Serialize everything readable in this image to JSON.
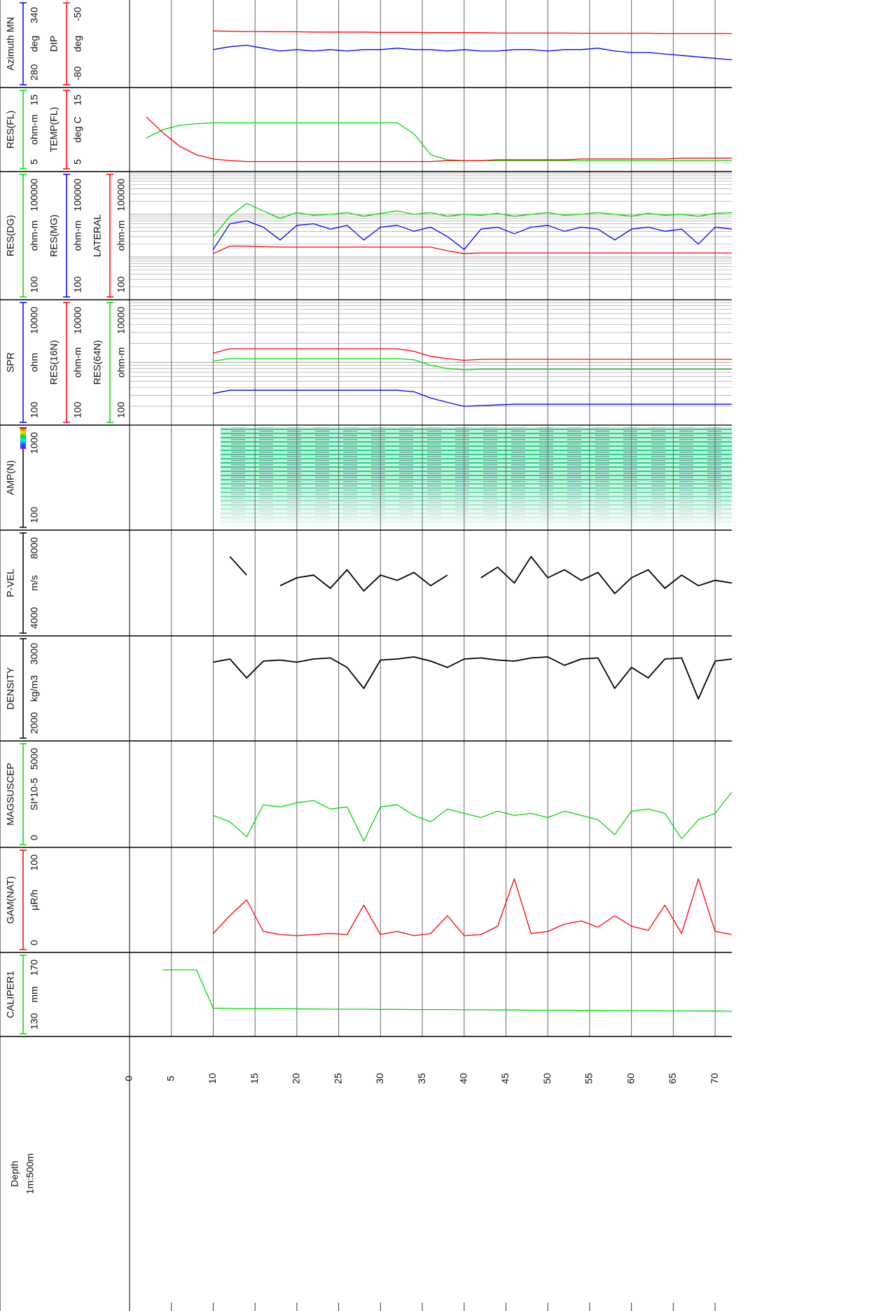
{
  "depth_axis": {
    "title": "Depth",
    "scale": "1m:500m",
    "xlim": [
      0,
      72
    ],
    "xticks": [
      0,
      5,
      10,
      15,
      20,
      25,
      30,
      35,
      40,
      45,
      50,
      55,
      60,
      65,
      70
    ]
  },
  "x": [
    2,
    4,
    6,
    8,
    10,
    12,
    14,
    16,
    18,
    20,
    22,
    24,
    26,
    28,
    30,
    32,
    34,
    36,
    38,
    40,
    42,
    44,
    46,
    48,
    50,
    52,
    54,
    56,
    58,
    60,
    62,
    64,
    66,
    68,
    70,
    72
  ],
  "chart_data": [
    {
      "type": "line",
      "series": [
        {
          "name": "Azimuth MN",
          "unit": "deg",
          "lim": [
            280,
            340
          ],
          "color": "#0000ff",
          "values": [
            null,
            null,
            null,
            null,
            306,
            308,
            309,
            307,
            305,
            306,
            305,
            306,
            305,
            306,
            306,
            307,
            306,
            306,
            305,
            306,
            305,
            305,
            306,
            306,
            305,
            306,
            306,
            307,
            305,
            304,
            304,
            303,
            302,
            301,
            300,
            299
          ]
        },
        {
          "name": "DIP",
          "unit": "deg",
          "lim": [
            -80,
            -50
          ],
          "color": "#ff0000",
          "values": [
            null,
            null,
            null,
            null,
            -60.6,
            -60.7,
            -60.8,
            -60.8,
            -60.9,
            -60.9,
            -61,
            -61,
            -61,
            -61,
            -61.1,
            -61.1,
            -61.1,
            -61.2,
            -61.2,
            -61.2,
            -61.2,
            -61.3,
            -61.3,
            -61.3,
            -61.3,
            -61.3,
            -61.4,
            -61.4,
            -61.4,
            -61.4,
            -61.4,
            -61.5,
            -61.5,
            -61.5,
            -61.5,
            -61.5
          ]
        }
      ]
    },
    {
      "type": "line",
      "series": [
        {
          "name": "RES(FL)",
          "unit": "ohm-m",
          "lim": [
            5,
            15
          ],
          "color": "#00dd00",
          "values": [
            9,
            10,
            10.5,
            10.7,
            10.8,
            10.8,
            10.8,
            10.8,
            10.8,
            10.8,
            10.8,
            10.8,
            10.8,
            10.8,
            10.8,
            10.8,
            9.5,
            7,
            6.4,
            6.3,
            6.3,
            6.3,
            6.3,
            6.3,
            6.3,
            6.3,
            6.3,
            6.3,
            6.3,
            6.3,
            6.3,
            6.3,
            6.3,
            6.3,
            6.3,
            6.3
          ]
        },
        {
          "name": "TEMP(FL)",
          "unit": "deg C",
          "lim": [
            5,
            15
          ],
          "color": "#ff0000",
          "values": [
            11.5,
            9.6,
            8,
            7,
            6.5,
            6.3,
            6.2,
            6.2,
            6.2,
            6.2,
            6.2,
            6.2,
            6.2,
            6.2,
            6.2,
            6.2,
            6.2,
            6.2,
            6.3,
            6.3,
            6.3,
            6.4,
            6.4,
            6.4,
            6.4,
            6.4,
            6.5,
            6.5,
            6.5,
            6.5,
            6.5,
            6.5,
            6.6,
            6.6,
            6.6,
            6.6
          ]
        }
      ]
    },
    {
      "type": "line",
      "log": true,
      "series": [
        {
          "name": "RES(DG)",
          "unit": "ohm-m",
          "lim": [
            100,
            100000
          ],
          "color": "#00dd00",
          "values": [
            null,
            null,
            null,
            null,
            3000,
            9000,
            18000,
            12000,
            8000,
            11000,
            9500,
            10000,
            11000,
            9000,
            10500,
            12000,
            10000,
            11000,
            9000,
            10000,
            9500,
            10500,
            9000,
            10000,
            11000,
            9500,
            10000,
            11000,
            10000,
            9000,
            10500,
            9500,
            10000,
            9000,
            10500,
            11000
          ]
        },
        {
          "name": "RES(MG)",
          "unit": "ohm-m",
          "lim": [
            100,
            100000
          ],
          "color": "#0000ff",
          "values": [
            null,
            null,
            null,
            null,
            1500,
            6000,
            7000,
            5000,
            2500,
            5500,
            6000,
            4500,
            5500,
            2500,
            5000,
            5500,
            4000,
            5000,
            3000,
            1500,
            4500,
            5000,
            3500,
            5000,
            5500,
            4000,
            5000,
            4500,
            2500,
            4500,
            5000,
            4000,
            4500,
            2000,
            5000,
            4500
          ]
        },
        {
          "name": "LATERAL",
          "unit": "ohm-m",
          "lim": [
            100,
            100000
          ],
          "color": "#ff0000",
          "values": [
            null,
            null,
            null,
            null,
            1200,
            1800,
            1800,
            1750,
            1700,
            1700,
            1700,
            1700,
            1700,
            1700,
            1700,
            1700,
            1700,
            1700,
            1400,
            1200,
            1250,
            1250,
            1250,
            1250,
            1250,
            1250,
            1250,
            1250,
            1250,
            1250,
            1250,
            1250,
            1250,
            1250,
            1250,
            1250
          ]
        }
      ]
    },
    {
      "type": "line",
      "log": true,
      "series": [
        {
          "name": "SPR",
          "unit": "ohm",
          "lim": [
            100,
            10000
          ],
          "color": "#0000ff",
          "values": [
            null,
            null,
            null,
            null,
            320,
            360,
            360,
            360,
            360,
            360,
            360,
            360,
            360,
            360,
            360,
            360,
            340,
            270,
            230,
            200,
            205,
            210,
            215,
            215,
            215,
            215,
            215,
            215,
            215,
            215,
            215,
            215,
            215,
            215,
            215,
            215
          ]
        },
        {
          "name": "RES(16N)",
          "unit": "ohm-m",
          "lim": [
            100,
            10000
          ],
          "color": "#ff0000",
          "values": [
            null,
            null,
            null,
            null,
            1400,
            1650,
            1650,
            1650,
            1650,
            1650,
            1650,
            1650,
            1650,
            1650,
            1650,
            1650,
            1500,
            1250,
            1150,
            1080,
            1120,
            1120,
            1120,
            1120,
            1120,
            1120,
            1120,
            1120,
            1120,
            1120,
            1120,
            1120,
            1120,
            1120,
            1120,
            1120
          ]
        },
        {
          "name": "RES(64N)",
          "unit": "ohm-m",
          "lim": [
            100,
            10000
          ],
          "color": "#00dd00",
          "values": [
            null,
            null,
            null,
            null,
            1050,
            1150,
            1150,
            1150,
            1150,
            1150,
            1150,
            1150,
            1150,
            1150,
            1150,
            1150,
            1100,
            900,
            800,
            760,
            780,
            780,
            780,
            780,
            780,
            780,
            780,
            780,
            780,
            780,
            780,
            780,
            780,
            780,
            780,
            780
          ]
        }
      ]
    },
    {
      "type": "image",
      "series": [
        {
          "name": "AMP(N)",
          "lim": [
            100,
            1000
          ]
        }
      ]
    },
    {
      "type": "line",
      "series": [
        {
          "name": "P-VEL",
          "unit": "m/s",
          "lim": [
            4000,
            8000
          ],
          "color": "#000000",
          "values": [
            null,
            null,
            null,
            null,
            null,
            7000,
            6300,
            null,
            5900,
            6200,
            6300,
            5800,
            6500,
            5700,
            6300,
            6100,
            6400,
            5900,
            6300,
            null,
            6200,
            6600,
            6000,
            7000,
            6200,
            6500,
            6100,
            6400,
            5600,
            6200,
            6500,
            5800,
            6300,
            5900,
            6100,
            6000
          ]
        }
      ]
    },
    {
      "type": "line",
      "series": [
        {
          "name": "DENSITY",
          "unit": "kg/m3",
          "lim": [
            2000,
            3000
          ],
          "color": "#000000",
          "values": [
            null,
            null,
            null,
            null,
            2750,
            2780,
            2600,
            2760,
            2770,
            2750,
            2780,
            2790,
            2700,
            2500,
            2770,
            2780,
            2800,
            2760,
            2700,
            2780,
            2790,
            2770,
            2760,
            2790,
            2800,
            2720,
            2780,
            2790,
            2500,
            2700,
            2600,
            2780,
            2790,
            2400,
            2760,
            2780
          ]
        }
      ]
    },
    {
      "type": "line",
      "series": [
        {
          "name": "MAGSUSCEP",
          "unit": "SI*10-5",
          "lim": [
            0,
            5000
          ],
          "color": "#00dd00",
          "values": [
            null,
            null,
            null,
            null,
            1500,
            1200,
            500,
            2000,
            1900,
            2100,
            2200,
            1800,
            1900,
            300,
            1900,
            2000,
            1500,
            1200,
            1800,
            1600,
            1400,
            1700,
            1500,
            1600,
            1400,
            1700,
            1500,
            1300,
            600,
            1700,
            1800,
            1600,
            400,
            1300,
            1600,
            2600
          ]
        }
      ]
    },
    {
      "type": "line",
      "series": [
        {
          "name": "GAM(NAT)",
          "unit": "µR/h",
          "lim": [
            0,
            100
          ],
          "color": "#ff0000",
          "values": [
            null,
            null,
            null,
            null,
            18,
            35,
            50,
            20,
            17,
            16,
            17,
            18,
            17,
            45,
            17,
            20,
            16,
            18,
            35,
            16,
            17,
            25,
            70,
            18,
            20,
            27,
            30,
            24,
            35,
            25,
            21,
            45,
            18,
            70,
            20,
            17
          ]
        }
      ]
    },
    {
      "type": "line",
      "series": [
        {
          "name": "CALIPER1",
          "unit": "mm",
          "lim": [
            130,
            170
          ],
          "color": "#00dd00",
          "values": [
            null,
            161.7,
            161.7,
            161.7,
            143.5,
            143.3,
            143.3,
            143.2,
            143.2,
            143.1,
            143.1,
            143,
            143,
            143,
            142.9,
            142.9,
            142.8,
            142.8,
            142.8,
            142.7,
            142.7,
            142.6,
            142.6,
            142.5,
            142.5,
            142.5,
            142.4,
            142.4,
            142.3,
            142.3,
            142.3,
            142.2,
            142.2,
            142.1,
            142.1,
            142
          ]
        }
      ]
    }
  ]
}
